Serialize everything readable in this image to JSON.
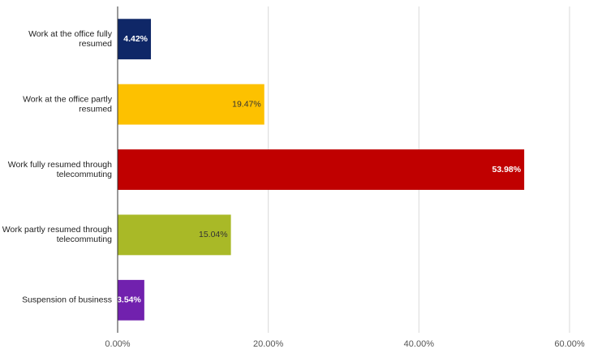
{
  "chart_data": {
    "type": "bar",
    "orientation": "horizontal",
    "title": "",
    "xlabel": "",
    "ylabel": "",
    "xlim": [
      0,
      60
    ],
    "x_ticks": [
      0,
      20,
      40,
      60
    ],
    "x_tick_labels": [
      "0.00%",
      "20.00%",
      "40.00%",
      "60.00%"
    ],
    "grid": true,
    "legend": "none",
    "categories": [
      [
        "Work at the office fully",
        "resumed"
      ],
      [
        "Work at the office partly",
        "resumed"
      ],
      [
        "Work fully resumed through",
        "telecommuting"
      ],
      [
        "Work partly resumed through",
        "telecommuting"
      ],
      [
        "Suspension of business"
      ]
    ],
    "values": [
      4.42,
      19.47,
      53.98,
      15.04,
      3.54
    ],
    "data_labels": [
      "4.42%",
      "19.47%",
      "53.98%",
      "15.04%",
      "3.54%"
    ],
    "colors": [
      "#0f2767",
      "#fdc100",
      "#c00000",
      "#a9b927",
      "#7121ae"
    ],
    "label_styles": [
      "light",
      "dark",
      "light",
      "dark",
      "light"
    ]
  }
}
